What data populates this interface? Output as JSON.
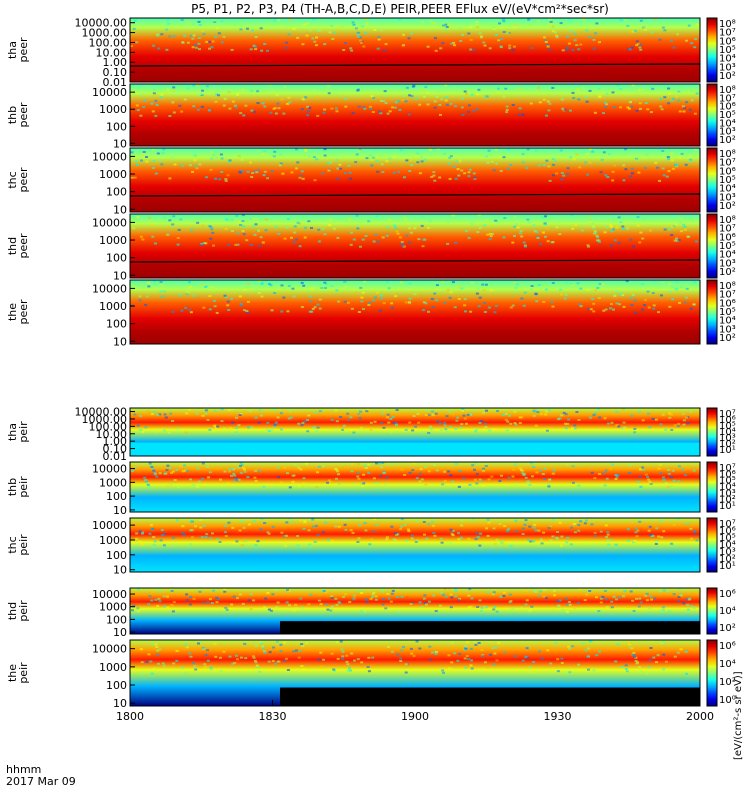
{
  "title": "P5, P1, P2, P3, P4 (TH-A,B,C,D,E) PEIR,PEER EFlux eV/(eV*cm²*sec*sr)",
  "footer": {
    "time_label": "hhmm",
    "date_label": "2017 Mar 09"
  },
  "xaxis": {
    "tick_labels": [
      "1800",
      "1830",
      "1900",
      "1930",
      "2000"
    ],
    "tick_minutes": [
      0,
      30,
      60,
      90,
      120
    ],
    "range_minutes": [
      0,
      120
    ]
  },
  "colorbar_unit_label": "[eV/(cm²-s sr eV)]",
  "colors": {
    "ring_current_red": "#dd1010",
    "background_black": "#000000",
    "status_bar_red": "#ee1111",
    "status_bar_yellow": "#ffff00"
  },
  "chart_data": {
    "type": "heatmap",
    "panels": [
      {
        "label": [
          "tha",
          "peer"
        ],
        "ylog_range": [
          0.01,
          30000
        ],
        "ytick_labels": [
          "10000.00",
          "1000.00",
          "100.00",
          "10.00",
          "1.00",
          "0.10",
          "0.01"
        ],
        "ytick_values": [
          10000,
          1000,
          100,
          10,
          1,
          0.1,
          0.01
        ],
        "cbar_ticks": [
          "10⁸",
          "10⁷",
          "10⁶",
          "10⁵",
          "10⁴",
          "10³",
          "10²"
        ],
        "cbar_range": [
          2,
          8
        ],
        "base_band": 2.6,
        "potential_line": true
      },
      {
        "label": [
          "thb",
          "peer"
        ],
        "ylog_range": [
          7,
          30000
        ],
        "ytick_labels": [
          "10000",
          "1000",
          "100",
          "10"
        ],
        "ytick_values": [
          10000,
          1000,
          100,
          10
        ],
        "cbar_ticks": [
          "10⁸",
          "10⁷",
          "10⁶",
          "10⁵",
          "10⁴",
          "10³",
          "10²"
        ],
        "cbar_range": [
          2,
          8
        ],
        "base_band": 2.0,
        "potential_line": false
      },
      {
        "label": [
          "thc",
          "peer"
        ],
        "ylog_range": [
          7,
          30000
        ],
        "ytick_labels": [
          "10000",
          "1000",
          "100",
          "10"
        ],
        "ytick_values": [
          10000,
          1000,
          100,
          10
        ],
        "cbar_ticks": [
          "10⁸",
          "10⁷",
          "10⁶",
          "10⁵",
          "10⁴",
          "10³",
          "10²"
        ],
        "cbar_range": [
          2,
          8
        ],
        "base_band": 2.2,
        "potential_line": true
      },
      {
        "label": [
          "thd",
          "peer"
        ],
        "ylog_range": [
          7,
          30000
        ],
        "ytick_labels": [
          "10000",
          "1000",
          "100",
          "10"
        ],
        "ytick_values": [
          10000,
          1000,
          100,
          10
        ],
        "cbar_ticks": [
          "10⁸",
          "10⁷",
          "10⁶",
          "10⁵",
          "10⁴",
          "10³",
          "10²"
        ],
        "cbar_range": [
          2,
          8
        ],
        "base_band": 3.2,
        "potential_line": true
      },
      {
        "label": [
          "the",
          "peer"
        ],
        "ylog_range": [
          7,
          30000
        ],
        "ytick_labels": [
          "10000",
          "1000",
          "100",
          "10"
        ],
        "ytick_values": [
          10000,
          1000,
          100,
          10
        ],
        "cbar_ticks": [
          "10⁸",
          "10⁷",
          "10⁶",
          "10⁵",
          "10⁴",
          "10³",
          "10²"
        ],
        "cbar_range": [
          2,
          8
        ],
        "base_band": 2.8,
        "potential_line": false
      },
      {
        "label": [
          "tha",
          "peir"
        ],
        "ylog_range": [
          0.01,
          30000
        ],
        "ytick_labels": [
          "10000.00",
          "1000.00",
          "100.00",
          "10.00",
          "1.00",
          "0.10",
          "0.01"
        ],
        "ytick_values": [
          10000,
          1000,
          100,
          10,
          1,
          0.1,
          0.01
        ],
        "cbar_ticks": [
          "10⁷",
          "10⁶",
          "10⁵",
          "10⁴",
          "10³",
          "10²",
          "10¹"
        ],
        "cbar_range": [
          1,
          7
        ],
        "base_band": 3.4,
        "potential_line": false
      },
      {
        "label": [
          "thb",
          "peir"
        ],
        "ylog_range": [
          7,
          30000
        ],
        "ytick_labels": [
          "10000",
          "1000",
          "100",
          "10"
        ],
        "ytick_values": [
          10000,
          1000,
          100,
          10
        ],
        "cbar_ticks": [
          "10⁷",
          "10⁶",
          "10⁵",
          "10⁴",
          "10³",
          "10²",
          "10¹"
        ],
        "cbar_range": [
          1,
          7
        ],
        "base_band": 3.0,
        "potential_line": false
      },
      {
        "label": [
          "thc",
          "peir"
        ],
        "ylog_range": [
          7,
          30000
        ],
        "ytick_labels": [
          "10000",
          "1000",
          "100",
          "10"
        ],
        "ytick_values": [
          10000,
          1000,
          100,
          10
        ],
        "cbar_ticks": [
          "10⁷",
          "10⁶",
          "10⁵",
          "10⁴",
          "10³",
          "10²",
          "10¹"
        ],
        "cbar_range": [
          1,
          7
        ],
        "base_band": 3.0,
        "potential_line": false
      },
      {
        "label": [
          "thd",
          "peir"
        ],
        "ylog_range": [
          7,
          30000
        ],
        "ytick_labels": [
          "10000",
          "1000",
          "100",
          "10"
        ],
        "ytick_values": [
          10000,
          1000,
          100,
          10
        ],
        "cbar_ticks": [
          "10⁶",
          "10⁴",
          "10²"
        ],
        "cbar_range": [
          1,
          7
        ],
        "base_band": 3.5,
        "potential_line": false
      },
      {
        "label": [
          "the",
          "peir"
        ],
        "ylog_range": [
          7,
          30000
        ],
        "ytick_labels": [
          "10000",
          "1000",
          "100",
          "10"
        ],
        "ytick_values": [
          10000,
          1000,
          100,
          10
        ],
        "cbar_ticks": [
          "10⁶",
          "10⁴",
          "10²",
          "10⁰"
        ],
        "cbar_range": [
          0,
          7
        ],
        "base_band": 3.5,
        "potential_line": false
      }
    ]
  }
}
